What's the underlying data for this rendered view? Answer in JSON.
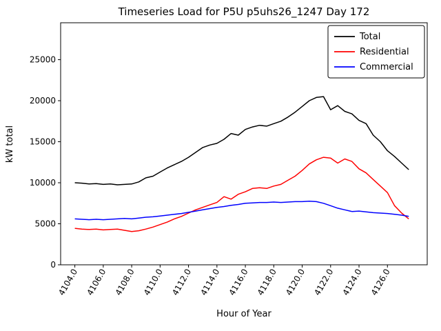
{
  "chart_data": {
    "type": "line",
    "title": "Timeseries Load for P5U p5uhs26_1247  Day 172",
    "xlabel": "Hour of Year",
    "ylabel": "kW total",
    "xlim": [
      4103.0,
      4128.8
    ],
    "ylim": [
      0,
      29500
    ],
    "xticks": [
      4104,
      4106,
      4108,
      4110,
      4112,
      4114,
      4116,
      4118,
      4120,
      4122,
      4124,
      4126
    ],
    "xtick_labels": [
      "4104.0",
      "4106.0",
      "4108.0",
      "4110.0",
      "4112.0",
      "4114.0",
      "4116.0",
      "4118.0",
      "4120.0",
      "4122.0",
      "4124.0",
      "4126.0"
    ],
    "yticks": [
      0,
      5000,
      10000,
      15000,
      20000,
      25000
    ],
    "ytick_labels": [
      "0",
      "5000",
      "10000",
      "15000",
      "20000",
      "25000"
    ],
    "grid": false,
    "legend_position": "upper right",
    "x": [
      4104.0,
      4104.5,
      4105.0,
      4105.5,
      4106.0,
      4106.5,
      4107.0,
      4107.5,
      4108.0,
      4108.5,
      4109.0,
      4109.5,
      4110.0,
      4110.5,
      4111.0,
      4111.5,
      4112.0,
      4112.5,
      4113.0,
      4113.5,
      4114.0,
      4114.5,
      4115.0,
      4115.5,
      4116.0,
      4116.5,
      4117.0,
      4117.5,
      4118.0,
      4118.5,
      4119.0,
      4119.5,
      4120.0,
      4120.5,
      4121.0,
      4121.5,
      4122.0,
      4122.5,
      4123.0,
      4123.5,
      4124.0,
      4124.5,
      4125.0,
      4125.5,
      4126.0,
      4126.5,
      4127.0,
      4127.5
    ],
    "series": [
      {
        "name": "Total",
        "color": "#000000",
        "values": [
          10000,
          9950,
          9850,
          9900,
          9800,
          9850,
          9750,
          9800,
          9850,
          10100,
          10600,
          10800,
          11300,
          11800,
          12200,
          12600,
          13100,
          13700,
          14300,
          14600,
          14800,
          15300,
          16000,
          15800,
          16500,
          16800,
          17000,
          16900,
          17200,
          17500,
          18000,
          18600,
          19300,
          20000,
          20400,
          20500,
          18900,
          19400,
          18700,
          18400,
          17600,
          17200,
          15800,
          15000,
          13900,
          13200,
          12400,
          11600
        ]
      },
      {
        "name": "Residential",
        "color": "#ff0000",
        "values": [
          4450,
          4350,
          4300,
          4350,
          4250,
          4300,
          4350,
          4200,
          4050,
          4150,
          4350,
          4600,
          4900,
          5200,
          5600,
          5900,
          6300,
          6700,
          7000,
          7300,
          7600,
          8300,
          8000,
          8600,
          8900,
          9300,
          9400,
          9300,
          9600,
          9800,
          10300,
          10800,
          11500,
          12300,
          12800,
          13100,
          13000,
          12400,
          12900,
          12600,
          11700,
          11200,
          10400,
          9600,
          8800,
          7200,
          6300,
          5600
        ]
      },
      {
        "name": "Commercial",
        "color": "#0000ff",
        "values": [
          5600,
          5550,
          5500,
          5550,
          5500,
          5550,
          5600,
          5650,
          5600,
          5700,
          5800,
          5850,
          5950,
          6050,
          6150,
          6250,
          6400,
          6550,
          6700,
          6850,
          7000,
          7100,
          7250,
          7350,
          7500,
          7550,
          7600,
          7600,
          7650,
          7600,
          7650,
          7700,
          7700,
          7750,
          7700,
          7500,
          7200,
          6900,
          6700,
          6500,
          6550,
          6450,
          6350,
          6300,
          6250,
          6150,
          6050,
          5900
        ]
      }
    ]
  }
}
